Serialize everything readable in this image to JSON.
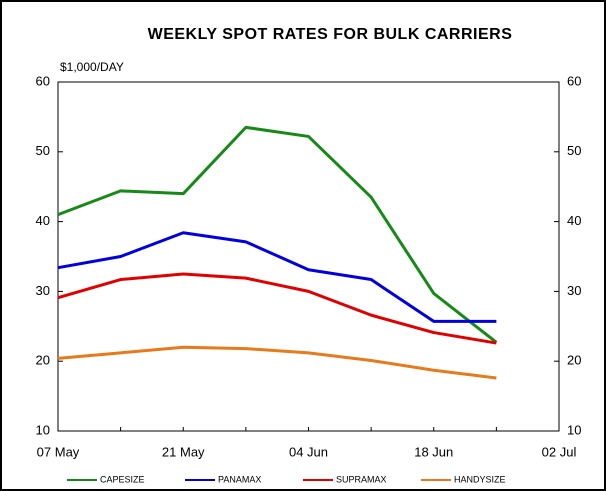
{
  "chart_data": {
    "type": "line",
    "title": "WEEKLY SPOT RATES FOR BULK CARRIERS",
    "y_label": "$1,000/DAY",
    "categories": [
      "07 May",
      null,
      "21 May",
      null,
      "04 Jun",
      null,
      "18 Jun",
      null,
      "02 Jul"
    ],
    "series": [
      {
        "name": "CAPESIZE",
        "color": "#168a16",
        "values": [
          41,
          44.4,
          44,
          53.5,
          52.2,
          43.5,
          29.7,
          22.7,
          null
        ]
      },
      {
        "name": "PANAMAX",
        "color": "#0000e0",
        "values": [
          33.4,
          35,
          38.4,
          37.1,
          33.1,
          31.7,
          25.7,
          25.7,
          null
        ]
      },
      {
        "name": "SUPRAMAX",
        "color": "#e00000",
        "values": [
          29.1,
          31.7,
          32.5,
          31.9,
          30,
          26.6,
          24.1,
          22.6,
          null
        ]
      },
      {
        "name": "HANDYSIZE",
        "color": "#e87a1a",
        "values": [
          20.4,
          21.2,
          22,
          21.8,
          21.2,
          20.1,
          18.7,
          17.6,
          null
        ]
      }
    ],
    "ylim": [
      10,
      60
    ],
    "yticks": [
      10,
      20,
      30,
      40,
      50,
      60
    ],
    "y2lim": [
      10,
      60
    ],
    "y2ticks": [
      10,
      20,
      30,
      40,
      50,
      60
    ],
    "legend": "bottom"
  }
}
